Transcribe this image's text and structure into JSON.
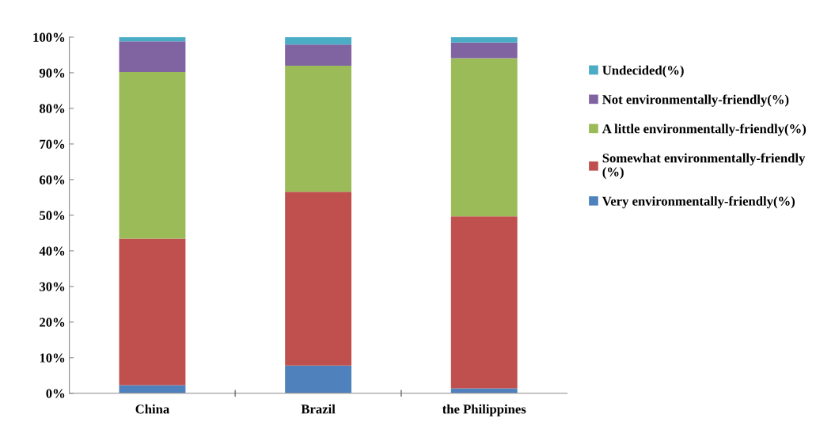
{
  "chart_data": {
    "type": "bar",
    "stacked": true,
    "categories": [
      "China",
      "Brazil",
      "the Philippines"
    ],
    "series": [
      {
        "name": "Very environmentally-friendly(%)",
        "color": "#4f81bd",
        "values": [
          2.3,
          7.8,
          1.4
        ]
      },
      {
        "name": "Somewhat environmentally-friendly\n(%)",
        "color": "#c0504d",
        "values": [
          41.1,
          48.8,
          48.3
        ]
      },
      {
        "name": "A little environmentally-friendly(%)",
        "color": "#9bbb59",
        "values": [
          46.8,
          35.4,
          44.4
        ]
      },
      {
        "name": "Not environmentally-friendly(%)",
        "color": "#8064a2",
        "values": [
          8.6,
          5.9,
          4.4
        ]
      },
      {
        "name": "Undecided(%)",
        "color": "#4bacc6",
        "values": [
          1.2,
          2.1,
          1.5
        ]
      }
    ],
    "ylim": [
      0,
      100
    ],
    "yticks": [
      {
        "value": 0,
        "label": "0%"
      },
      {
        "value": 10,
        "label": "10%"
      },
      {
        "value": 20,
        "label": "20%"
      },
      {
        "value": 30,
        "label": "30%"
      },
      {
        "value": 40,
        "label": "40%"
      },
      {
        "value": 50,
        "label": "50%"
      },
      {
        "value": 60,
        "label": "60%"
      },
      {
        "value": 70,
        "label": "70%"
      },
      {
        "value": 80,
        "label": "80%"
      },
      {
        "value": 90,
        "label": "90%"
      },
      {
        "value": 100,
        "label": "100%"
      }
    ],
    "grid": false,
    "legend": "right"
  }
}
